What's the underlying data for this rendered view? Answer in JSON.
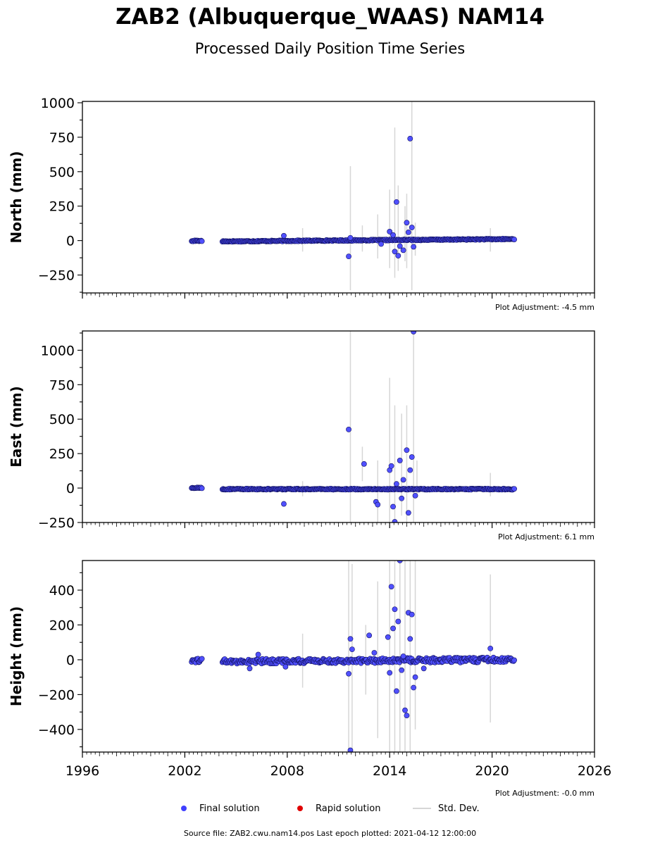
{
  "title": "ZAB2 (Albuquerque_WAAS) NAM14",
  "subtitle": "Processed Daily Position Time Series",
  "chart_data": {
    "type": "scatter",
    "x_axis": {
      "range": [
        1996,
        2026
      ],
      "ticks": [
        1996,
        2002,
        2008,
        2014,
        2020,
        2026
      ],
      "tick_labels": [
        "1996",
        "2002",
        "2008",
        "2014",
        "2020",
        "2026"
      ]
    },
    "panels": [
      {
        "ylabel": "North (mm)",
        "ylim": [
          -380,
          1010
        ],
        "yticks": [
          -250,
          0,
          250,
          500,
          750,
          1000
        ],
        "ytick_labels": [
          "−250",
          "0",
          "250",
          "500",
          "750",
          "1000"
        ],
        "adjustment": "Plot Adjustment: -4.5 mm",
        "trend": {
          "start": [
            2004.2,
            -6
          ],
          "end": [
            2021.3,
            11
          ],
          "spread": 4
        },
        "early_segment": {
          "x0": 2002.4,
          "x1": 2003.0,
          "y": -2
        },
        "outliers": [
          [
            2007.8,
            35
          ],
          [
            2011.6,
            -115
          ],
          [
            2011.7,
            20
          ],
          [
            2013.5,
            -25
          ],
          [
            2014.0,
            65
          ],
          [
            2014.2,
            40
          ],
          [
            2014.3,
            -80
          ],
          [
            2014.4,
            280
          ],
          [
            2014.5,
            -110
          ],
          [
            2014.6,
            -40
          ],
          [
            2014.8,
            -70
          ],
          [
            2015.0,
            130
          ],
          [
            2015.1,
            60
          ],
          [
            2015.2,
            740
          ],
          [
            2015.3,
            95
          ],
          [
            2015.4,
            -45
          ]
        ],
        "std_dev_bars": [
          [
            2008.9,
            -80,
            90
          ],
          [
            2011.7,
            -360,
            540
          ],
          [
            2012.4,
            -80,
            110
          ],
          [
            2013.3,
            -130,
            190
          ],
          [
            2014.0,
            -200,
            370
          ],
          [
            2014.3,
            -270,
            820
          ],
          [
            2014.5,
            -220,
            400
          ],
          [
            2014.9,
            -150,
            250
          ],
          [
            2015.0,
            -200,
            340
          ],
          [
            2015.3,
            -360,
            1010
          ],
          [
            2015.5,
            -110,
            130
          ],
          [
            2019.9,
            -80,
            90
          ]
        ]
      },
      {
        "ylabel": "East (mm)",
        "ylim": [
          -250,
          1140
        ],
        "yticks": [
          -250,
          0,
          250,
          500,
          750,
          1000
        ],
        "ytick_labels": [
          "−250",
          "0",
          "250",
          "500",
          "750",
          "1000"
        ],
        "adjustment": "Plot Adjustment: 6.1 mm",
        "trend": {
          "start": [
            2004.2,
            -8
          ],
          "end": [
            2021.3,
            -8
          ],
          "spread": 4
        },
        "early_segment": {
          "x0": 2002.4,
          "x1": 2003.0,
          "y": 2
        },
        "outliers": [
          [
            2007.8,
            -115
          ],
          [
            2011.6,
            425
          ],
          [
            2012.5,
            175
          ],
          [
            2013.2,
            -100
          ],
          [
            2013.3,
            -120
          ],
          [
            2014.0,
            130
          ],
          [
            2014.1,
            160
          ],
          [
            2014.2,
            -135
          ],
          [
            2014.3,
            -245
          ],
          [
            2014.4,
            30
          ],
          [
            2014.6,
            200
          ],
          [
            2014.7,
            -75
          ],
          [
            2014.8,
            60
          ],
          [
            2015.0,
            275
          ],
          [
            2015.1,
            -180
          ],
          [
            2015.2,
            130
          ],
          [
            2015.3,
            225
          ],
          [
            2015.4,
            1135
          ],
          [
            2015.5,
            -55
          ]
        ],
        "std_dev_bars": [
          [
            2008.9,
            -60,
            50
          ],
          [
            2011.7,
            -250,
            1140
          ],
          [
            2012.4,
            50,
            300
          ],
          [
            2013.3,
            -250,
            200
          ],
          [
            2014.0,
            -250,
            800
          ],
          [
            2014.3,
            -250,
            600
          ],
          [
            2014.7,
            -200,
            540
          ],
          [
            2015.0,
            -250,
            600
          ],
          [
            2015.4,
            -250,
            1140
          ],
          [
            2015.6,
            -60,
            200
          ],
          [
            2019.9,
            -60,
            110
          ]
        ]
      },
      {
        "ylabel": "Height (mm)",
        "ylim": [
          -530,
          570
        ],
        "yticks": [
          -400,
          -200,
          0,
          200,
          400
        ],
        "ytick_labels": [
          "−400",
          "−200",
          "0",
          "200",
          "400"
        ],
        "adjustment": "Plot Adjustment: -0.0 mm",
        "trend": {
          "start": [
            2004.2,
            -10
          ],
          "end": [
            2021.3,
            0
          ],
          "spread": 14
        },
        "early_segment": {
          "x0": 2002.4,
          "x1": 2003.0,
          "y": -5
        },
        "outliers": [
          [
            2005.8,
            -50
          ],
          [
            2006.3,
            30
          ],
          [
            2007.9,
            -40
          ],
          [
            2011.6,
            -80
          ],
          [
            2011.7,
            120
          ],
          [
            2011.8,
            60
          ],
          [
            2011.7,
            -520
          ],
          [
            2012.8,
            140
          ],
          [
            2013.1,
            40
          ],
          [
            2013.9,
            130
          ],
          [
            2014.0,
            -75
          ],
          [
            2014.1,
            420
          ],
          [
            2014.2,
            180
          ],
          [
            2014.3,
            290
          ],
          [
            2014.4,
            -180
          ],
          [
            2014.5,
            220
          ],
          [
            2014.6,
            570
          ],
          [
            2014.7,
            -60
          ],
          [
            2014.8,
            20
          ],
          [
            2014.9,
            -290
          ],
          [
            2015.0,
            -320
          ],
          [
            2015.1,
            270
          ],
          [
            2015.2,
            120
          ],
          [
            2015.3,
            260
          ],
          [
            2015.4,
            -160
          ],
          [
            2015.5,
            -100
          ],
          [
            2016.0,
            -50
          ],
          [
            2019.9,
            65
          ]
        ],
        "std_dev_bars": [
          [
            2008.9,
            -160,
            150
          ],
          [
            2011.6,
            -530,
            570
          ],
          [
            2011.8,
            -520,
            550
          ],
          [
            2012.6,
            -200,
            200
          ],
          [
            2013.3,
            -450,
            450
          ],
          [
            2014.0,
            -530,
            570
          ],
          [
            2014.3,
            -530,
            570
          ],
          [
            2014.6,
            -530,
            570
          ],
          [
            2014.9,
            -530,
            570
          ],
          [
            2015.2,
            -530,
            570
          ],
          [
            2015.5,
            -400,
            570
          ],
          [
            2019.9,
            -360,
            490
          ]
        ]
      }
    ],
    "legend": {
      "placement": "bottom-center",
      "entries": [
        {
          "label": "Final solution",
          "color": "#4040ff",
          "marker": "circle"
        },
        {
          "label": "Rapid solution",
          "color": "#e00000",
          "marker": "circle"
        },
        {
          "label": "Std. Dev.",
          "color": "#d6d6d6",
          "marker": "line"
        }
      ]
    },
    "colors": {
      "final": "#5050ff",
      "edge": "#101060",
      "std_dev": "#d6d6d6"
    }
  },
  "footer": "Source file: ZAB2.cwu.nam14.pos  Last epoch plotted: 2021-04-12 12:00:00"
}
